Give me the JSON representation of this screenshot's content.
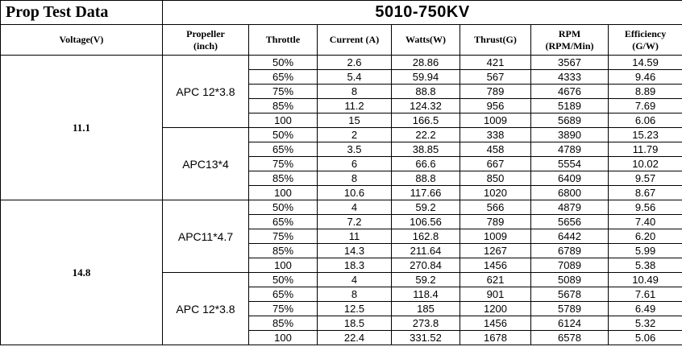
{
  "title_left": "Prop Test Data",
  "title_right": "5010-750KV",
  "headers": {
    "voltage": "Voltage(V)",
    "propeller_line1": "Propeller",
    "propeller_line2": "(inch)",
    "throttle": "Throttle",
    "current": "Current (A)",
    "watts": "Watts(W)",
    "thrust": "Thrust(G)",
    "rpm_line1": "RPM",
    "rpm_line2": "(RPM/Min)",
    "efficiency_line1": "Efficiency",
    "efficiency_line2": "(G/W)"
  },
  "groups": [
    {
      "voltage": "11.1",
      "propellers": [
        {
          "name": "APC 12*3.8",
          "rows": [
            {
              "throttle": "50%",
              "current": "2.6",
              "watts": "28.86",
              "thrust": "421",
              "rpm": "3567",
              "efficiency": "14.59"
            },
            {
              "throttle": "65%",
              "current": "5.4",
              "watts": "59.94",
              "thrust": "567",
              "rpm": "4333",
              "efficiency": "9.46"
            },
            {
              "throttle": "75%",
              "current": "8",
              "watts": "88.8",
              "thrust": "789",
              "rpm": "4676",
              "efficiency": "8.89"
            },
            {
              "throttle": "85%",
              "current": "11.2",
              "watts": "124.32",
              "thrust": "956",
              "rpm": "5189",
              "efficiency": "7.69"
            },
            {
              "throttle": "100",
              "current": "15",
              "watts": "166.5",
              "thrust": "1009",
              "rpm": "5689",
              "efficiency": "6.06"
            }
          ]
        },
        {
          "name": "APC13*4",
          "rows": [
            {
              "throttle": "50%",
              "current": "2",
              "watts": "22.2",
              "thrust": "338",
              "rpm": "3890",
              "efficiency": "15.23"
            },
            {
              "throttle": "65%",
              "current": "3.5",
              "watts": "38.85",
              "thrust": "458",
              "rpm": "4789",
              "efficiency": "11.79"
            },
            {
              "throttle": "75%",
              "current": "6",
              "watts": "66.6",
              "thrust": "667",
              "rpm": "5554",
              "efficiency": "10.02"
            },
            {
              "throttle": "85%",
              "current": "8",
              "watts": "88.8",
              "thrust": "850",
              "rpm": "6409",
              "efficiency": "9.57"
            },
            {
              "throttle": "100",
              "current": "10.6",
              "watts": "117.66",
              "thrust": "1020",
              "rpm": "6800",
              "efficiency": "8.67"
            }
          ]
        }
      ]
    },
    {
      "voltage": "14.8",
      "propellers": [
        {
          "name": "APC11*4.7",
          "rows": [
            {
              "throttle": "50%",
              "current": "4",
              "watts": "59.2",
              "thrust": "566",
              "rpm": "4879",
              "efficiency": "9.56"
            },
            {
              "throttle": "65%",
              "current": "7.2",
              "watts": "106.56",
              "thrust": "789",
              "rpm": "5656",
              "efficiency": "7.40"
            },
            {
              "throttle": "75%",
              "current": "11",
              "watts": "162.8",
              "thrust": "1009",
              "rpm": "6442",
              "efficiency": "6.20"
            },
            {
              "throttle": "85%",
              "current": "14.3",
              "watts": "211.64",
              "thrust": "1267",
              "rpm": "6789",
              "efficiency": "5.99"
            },
            {
              "throttle": "100",
              "current": "18.3",
              "watts": "270.84",
              "thrust": "1456",
              "rpm": "7089",
              "efficiency": "5.38"
            }
          ]
        },
        {
          "name": "APC 12*3.8",
          "rows": [
            {
              "throttle": "50%",
              "current": "4",
              "watts": "59.2",
              "thrust": "621",
              "rpm": "5089",
              "efficiency": "10.49"
            },
            {
              "throttle": "65%",
              "current": "8",
              "watts": "118.4",
              "thrust": "901",
              "rpm": "5678",
              "efficiency": "7.61"
            },
            {
              "throttle": "75%",
              "current": "12.5",
              "watts": "185",
              "thrust": "1200",
              "rpm": "5789",
              "efficiency": "6.49"
            },
            {
              "throttle": "85%",
              "current": "18.5",
              "watts": "273.8",
              "thrust": "1456",
              "rpm": "6124",
              "efficiency": "5.32"
            },
            {
              "throttle": "100",
              "current": "22.4",
              "watts": "331.52",
              "thrust": "1678",
              "rpm": "6578",
              "efficiency": "5.06"
            }
          ]
        }
      ]
    }
  ]
}
